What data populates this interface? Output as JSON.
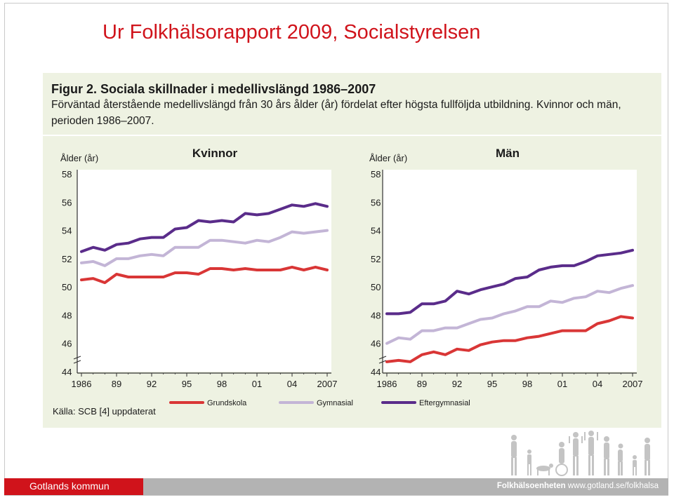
{
  "slide": {
    "title": "Ur Folkhälsorapport 2009, Socialstyrelsen"
  },
  "figure": {
    "caption_title": "Figur 2. Sociala skillnader i medellivslängd 1986–2007",
    "caption_desc": "Förväntad återstående medellivslängd från 30 års ålder (år) fördelat efter högsta fullföljda utbildning. Kvinnor och män, perioden 1986–2007.",
    "source": "Källa: SCB [4] uppdaterat"
  },
  "colors": {
    "Grundskola": "#d93636",
    "Gymnasial": "#c3b5d6",
    "Eftergymnasial": "#5a2c8a",
    "title_red": "#d0131b",
    "figure_bg": "#eef2e2"
  },
  "chart_data": [
    {
      "type": "line",
      "title": "Kvinnor",
      "ylabel": "Ålder (år)",
      "xlabel": "",
      "ylim": [
        44,
        58
      ],
      "yticks": [
        "44",
        "46",
        "48",
        "50",
        "52",
        "54",
        "56",
        "58"
      ],
      "xticks": [
        "1986",
        "89",
        "92",
        "95",
        "98",
        "01",
        "04",
        "2007"
      ],
      "grid": false,
      "legend": "bottom",
      "x": [
        1986,
        1987,
        1988,
        1989,
        1990,
        1991,
        1992,
        1993,
        1994,
        1995,
        1996,
        1997,
        1998,
        1999,
        2000,
        2001,
        2002,
        2003,
        2004,
        2005,
        2006,
        2007
      ],
      "series": [
        {
          "name": "Grundskola",
          "values": [
            50.5,
            50.6,
            50.3,
            50.9,
            50.7,
            50.7,
            50.7,
            50.7,
            51.0,
            51.0,
            50.9,
            51.3,
            51.3,
            51.2,
            51.3,
            51.2,
            51.2,
            51.2,
            51.4,
            51.2,
            51.4,
            51.2
          ]
        },
        {
          "name": "Gymnasial",
          "values": [
            51.7,
            51.8,
            51.5,
            52.0,
            52.0,
            52.2,
            52.3,
            52.2,
            52.8,
            52.8,
            52.8,
            53.3,
            53.3,
            53.2,
            53.1,
            53.3,
            53.2,
            53.5,
            53.9,
            53.8,
            53.9,
            54.0
          ]
        },
        {
          "name": "Eftergymnasial",
          "values": [
            52.5,
            52.8,
            52.6,
            53.0,
            53.1,
            53.4,
            53.5,
            53.5,
            54.1,
            54.2,
            54.7,
            54.6,
            54.7,
            54.6,
            55.2,
            55.1,
            55.2,
            55.5,
            55.8,
            55.7,
            55.9,
            55.7
          ]
        }
      ]
    },
    {
      "type": "line",
      "title": "Män",
      "ylabel": "Ålder (år)",
      "xlabel": "",
      "ylim": [
        44,
        58
      ],
      "yticks": [
        "44",
        "46",
        "48",
        "50",
        "52",
        "54",
        "56",
        "58"
      ],
      "xticks": [
        "1986",
        "89",
        "92",
        "95",
        "98",
        "01",
        "04",
        "2007"
      ],
      "grid": false,
      "legend": "bottom",
      "x": [
        1986,
        1987,
        1988,
        1989,
        1990,
        1991,
        1992,
        1993,
        1994,
        1995,
        1996,
        1997,
        1998,
        1999,
        2000,
        2001,
        2002,
        2003,
        2004,
        2005,
        2006,
        2007
      ],
      "series": [
        {
          "name": "Grundskola",
          "values": [
            44.7,
            44.8,
            44.7,
            45.2,
            45.4,
            45.2,
            45.6,
            45.5,
            45.9,
            46.1,
            46.2,
            46.2,
            46.4,
            46.5,
            46.7,
            46.9,
            46.9,
            46.9,
            47.4,
            47.6,
            47.9,
            47.8
          ]
        },
        {
          "name": "Gymnasial",
          "values": [
            46.0,
            46.4,
            46.3,
            46.9,
            46.9,
            47.1,
            47.1,
            47.4,
            47.7,
            47.8,
            48.1,
            48.3,
            48.6,
            48.6,
            49.0,
            48.9,
            49.2,
            49.3,
            49.7,
            49.6,
            49.9,
            50.1
          ]
        },
        {
          "name": "Eftergymnasial",
          "values": [
            48.1,
            48.1,
            48.2,
            48.8,
            48.8,
            49.0,
            49.7,
            49.5,
            49.8,
            50.0,
            50.2,
            50.6,
            50.7,
            51.2,
            51.4,
            51.5,
            51.5,
            51.8,
            52.2,
            52.3,
            52.4,
            52.6
          ]
        }
      ]
    }
  ],
  "footer": {
    "org": "Gotlands kommun",
    "unit": "Folkhälsoenheten",
    "url": "www.gotland.se/folkhalsa"
  }
}
